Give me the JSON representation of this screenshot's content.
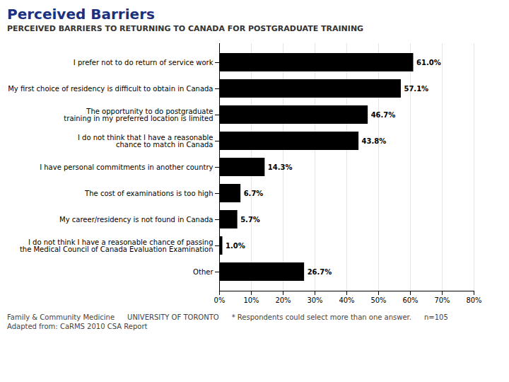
{
  "chart_data": {
    "type": "bar",
    "title": "Perceived Barriers",
    "subtitle": "PERCEIVED BARRIERS TO RETURNING TO CANADA FOR POSTGRADUATE TRAINING",
    "categories": [
      "I prefer not to do return of service work",
      "My first choice of residency is difficult to obtain in Canada",
      "The opportunity to do postgraduate\ntraining in my preferred location is limited",
      "I do not think that I have a reasonable\nchance to match in Canada",
      "I have personal commitments in another country",
      "The cost of examinations is too high",
      "My career/residency is not found in Canada",
      "I do not think I have a reasonable chance of passing\nthe Medical Council of Canada Evaluation Examination",
      "Other"
    ],
    "values": [
      61.0,
      57.1,
      46.7,
      43.8,
      14.3,
      6.7,
      5.7,
      1.0,
      26.7
    ],
    "value_labels": [
      "61.0%",
      "57.1%",
      "46.7%",
      "43.8%",
      "14.3%",
      "6.7%",
      "5.7%",
      "1.0%",
      "26.7%"
    ],
    "orientation": "horizontal",
    "data_labels": true,
    "grid": true,
    "xlim": [
      0,
      80
    ],
    "xticks": [
      {
        "value": 0,
        "label": "0%"
      },
      {
        "value": 10,
        "label": "10%"
      },
      {
        "value": 20,
        "label": "20%"
      },
      {
        "value": 30,
        "label": "30%"
      },
      {
        "value": 40,
        "label": "40%"
      },
      {
        "value": 50,
        "label": "50%"
      },
      {
        "value": 60,
        "label": "60%"
      },
      {
        "value": 70,
        "label": "70%"
      },
      {
        "value": 80,
        "label": "80%"
      }
    ],
    "annotations": [
      "Family & Community Medicine",
      "UNIVERSITY OF TORONTO",
      "* Respondents could select more than one answer.",
      "n=105",
      "Adapted from:  CaRMS 2010 CSA Report"
    ]
  }
}
